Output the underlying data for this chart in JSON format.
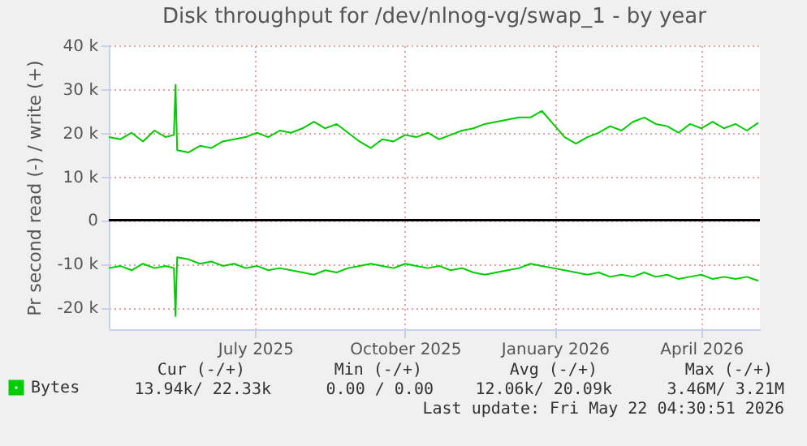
{
  "chart_data": {
    "type": "line",
    "title": "Disk throughput for /dev/nlnog-vg/swap_1 - by year",
    "ylabel": "Pr second read (-) / write (+)",
    "x": [
      "2025-04-17",
      "2025-04-24",
      "2025-05-01",
      "2025-05-08",
      "2025-05-15",
      "2025-05-22",
      "2025-05-27",
      "2025-05-28",
      "2025-05-29",
      "2025-06-05",
      "2025-06-12",
      "2025-06-19",
      "2025-06-26",
      "2025-07-03",
      "2025-07-10",
      "2025-07-17",
      "2025-07-24",
      "2025-07-31",
      "2025-08-07",
      "2025-08-14",
      "2025-08-21",
      "2025-08-28",
      "2025-09-04",
      "2025-09-11",
      "2025-09-18",
      "2025-09-25",
      "2025-10-02",
      "2025-10-09",
      "2025-10-16",
      "2025-10-23",
      "2025-10-30",
      "2025-11-06",
      "2025-11-13",
      "2025-11-20",
      "2025-11-27",
      "2025-12-04",
      "2025-12-11",
      "2025-12-18",
      "2025-12-25",
      "2026-01-01",
      "2026-01-08",
      "2026-01-15",
      "2026-01-22",
      "2026-01-29",
      "2026-02-05",
      "2026-02-12",
      "2026-02-19",
      "2026-02-26",
      "2026-03-05",
      "2026-03-12",
      "2026-03-19",
      "2026-03-26",
      "2026-04-02",
      "2026-04-09",
      "2026-04-16",
      "2026-04-23",
      "2026-04-30",
      "2026-05-07",
      "2026-05-14",
      "2026-05-21"
    ],
    "series": [
      {
        "name": "Bytes",
        "color": "#00cc00",
        "values": [
          19000,
          18500,
          20000,
          18000,
          20500,
          19000,
          19500,
          31000,
          16000,
          15500,
          17000,
          16500,
          18000,
          18500,
          19000,
          20000,
          19000,
          20500,
          20000,
          21000,
          22500,
          21000,
          22000,
          20000,
          18000,
          16500,
          18500,
          18000,
          19500,
          19000,
          20000,
          18500,
          19500,
          20500,
          21000,
          22000,
          22500,
          23000,
          23500,
          23500,
          25000,
          22000,
          19000,
          17500,
          19000,
          20000,
          21500,
          20500,
          22500,
          23500,
          22000,
          21500,
          20000,
          22000,
          21000,
          22500,
          21000,
          22000,
          20500,
          22300
        ]
      },
      {
        "color": "#00cc00",
        "values": [
          -11000,
          -10500,
          -11500,
          -10000,
          -11000,
          -10500,
          -11000,
          -22000,
          -8500,
          -9000,
          -10000,
          -9500,
          -10500,
          -10000,
          -11000,
          -10500,
          -11500,
          -11000,
          -11500,
          -12000,
          -12500,
          -11500,
          -12000,
          -11000,
          -10500,
          -10000,
          -10500,
          -11000,
          -10000,
          -10500,
          -11000,
          -10500,
          -11500,
          -11000,
          -12000,
          -12500,
          -12000,
          -11500,
          -11000,
          -10000,
          -10500,
          -11000,
          -11500,
          -12000,
          -12500,
          -12000,
          -13000,
          -12500,
          -13000,
          -12000,
          -13000,
          -12500,
          -13500,
          -13000,
          -12500,
          -13500,
          -13000,
          -13500,
          -13000,
          -13900
        ]
      }
    ],
    "xlim": [
      "2025-04-17",
      "2026-05-22"
    ],
    "xticks": [
      {
        "value": "2025-07-16",
        "label": "July 2025"
      },
      {
        "value": "2025-10-16",
        "label": "October 2025"
      },
      {
        "value": "2026-01-16",
        "label": "January 2026"
      },
      {
        "value": "2026-04-16",
        "label": "April 2026"
      }
    ],
    "ylim": [
      -25000,
      40000
    ],
    "yticks": [
      {
        "value": -20000,
        "label": "-20 k"
      },
      {
        "value": -10000,
        "label": "-10 k"
      },
      0,
      {
        "value": 10000,
        "label": "10 k"
      },
      {
        "value": 20000,
        "label": "20 k"
      },
      {
        "value": 30000,
        "label": "30 k"
      },
      {
        "value": 40000,
        "label": "40 k"
      }
    ],
    "ref_lines": [
      {
        "axis": "y",
        "value": 0,
        "color": "#000000"
      }
    ],
    "grid": true,
    "legend": "bottom left",
    "annotations": [
      "Cur (-/+)",
      "Min (-/+)",
      "Avg (-/+)",
      "Max (-/+)",
      "13.94k/ 22.33k",
      "0.00 /  0.00",
      "12.06k/ 20.09k",
      "3.46M/  3.21M",
      "Last update: Fri May 22 04:30:51 2026"
    ]
  }
}
